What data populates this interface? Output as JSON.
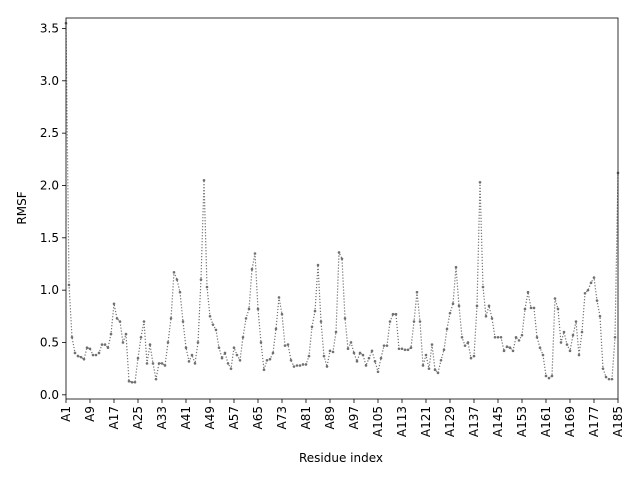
{
  "chart_data": {
    "type": "line",
    "xlabel": "Residue index",
    "ylabel": "RMSF",
    "categories": [
      "A1",
      null,
      null,
      null,
      null,
      null,
      null,
      null,
      "A9",
      null,
      null,
      null,
      null,
      null,
      null,
      null,
      "A17",
      null,
      null,
      null,
      null,
      null,
      null,
      null,
      "A25",
      null,
      null,
      null,
      null,
      null,
      null,
      null,
      "A33",
      null,
      null,
      null,
      null,
      null,
      null,
      null,
      "A41",
      null,
      null,
      null,
      null,
      null,
      null,
      null,
      "A49",
      null,
      null,
      null,
      null,
      null,
      null,
      null,
      "A57",
      null,
      null,
      null,
      null,
      null,
      null,
      null,
      "A65",
      null,
      null,
      null,
      null,
      null,
      null,
      null,
      "A73",
      null,
      null,
      null,
      null,
      null,
      null,
      null,
      "A81",
      null,
      null,
      null,
      null,
      null,
      null,
      null,
      "A89",
      null,
      null,
      null,
      null,
      null,
      null,
      null,
      "A97",
      null,
      null,
      null,
      null,
      null,
      null,
      null,
      "A105",
      null,
      null,
      null,
      null,
      null,
      null,
      null,
      "A113",
      null,
      null,
      null,
      null,
      null,
      null,
      null,
      "A121",
      null,
      null,
      null,
      null,
      null,
      null,
      null,
      "A129",
      null,
      null,
      null,
      null,
      null,
      null,
      null,
      "A137",
      null,
      null,
      null,
      null,
      null,
      null,
      null,
      "A145",
      null,
      null,
      null,
      null,
      null,
      null,
      null,
      "A153",
      null,
      null,
      null,
      null,
      null,
      null,
      null,
      "A161",
      null,
      null,
      null,
      null,
      null,
      null,
      null,
      "A169",
      null,
      null,
      null,
      null,
      null,
      null,
      null,
      "A177",
      null,
      null,
      null,
      null,
      null,
      null,
      null,
      "A185"
    ],
    "series": [
      {
        "color": "#707070",
        "values": [
          3.55,
          1.05,
          0.55,
          0.4,
          0.37,
          0.36,
          0.34,
          0.45,
          0.44,
          0.38,
          0.38,
          0.4,
          0.48,
          0.48,
          0.45,
          0.58,
          0.87,
          0.73,
          0.7,
          0.5,
          0.58,
          0.13,
          0.12,
          0.12,
          0.35,
          0.55,
          0.7,
          0.3,
          0.48,
          0.3,
          0.15,
          0.3,
          0.3,
          0.28,
          0.5,
          0.73,
          1.17,
          1.1,
          0.98,
          0.7,
          0.45,
          0.32,
          0.38,
          0.3,
          0.5,
          1.1,
          2.05,
          1.03,
          0.75,
          0.67,
          0.62,
          0.45,
          0.35,
          0.4,
          0.3,
          0.25,
          0.45,
          0.38,
          0.33,
          0.55,
          0.73,
          0.82,
          1.2,
          1.35,
          0.82,
          0.5,
          0.24,
          0.33,
          0.34,
          0.4,
          0.63,
          0.93,
          0.77,
          0.47,
          0.48,
          0.33,
          0.27,
          0.28,
          0.28,
          0.29,
          0.29,
          0.37,
          0.65,
          0.8,
          1.24,
          0.7,
          0.37,
          0.27,
          0.42,
          0.41,
          0.6,
          1.36,
          1.3,
          0.73,
          0.44,
          0.5,
          0.4,
          0.32,
          0.4,
          0.38,
          0.28,
          0.35,
          0.42,
          0.32,
          0.22,
          0.35,
          0.47,
          0.47,
          0.7,
          0.77,
          0.77,
          0.44,
          0.44,
          0.43,
          0.43,
          0.45,
          0.7,
          0.98,
          0.7,
          0.28,
          0.38,
          0.25,
          0.48,
          0.24,
          0.21,
          0.33,
          0.43,
          0.63,
          0.78,
          0.87,
          1.22,
          0.85,
          0.55,
          0.47,
          0.5,
          0.35,
          0.37,
          0.85,
          2.03,
          1.03,
          0.75,
          0.85,
          0.73,
          0.55,
          0.55,
          0.55,
          0.42,
          0.46,
          0.45,
          0.42,
          0.55,
          0.52,
          0.57,
          0.82,
          0.98,
          0.83,
          0.83,
          0.55,
          0.45,
          0.38,
          0.18,
          0.16,
          0.18,
          0.92,
          0.82,
          0.5,
          0.6,
          0.48,
          0.42,
          0.57,
          0.7,
          0.38,
          0.6,
          0.97,
          1.0,
          1.07,
          1.12,
          0.9,
          0.75,
          0.25,
          0.17,
          0.15,
          0.15,
          0.55,
          2.12
        ]
      }
    ],
    "ylim": [
      -0.04,
      3.6
    ],
    "yticks": [
      {
        "value": 0,
        "label": "0.0"
      },
      0.5,
      {
        "value": 1,
        "label": "1.0"
      },
      1.5,
      {
        "value": 2,
        "label": "2.0"
      },
      2.5,
      {
        "value": 3,
        "label": "3.0"
      },
      3.5
    ]
  }
}
